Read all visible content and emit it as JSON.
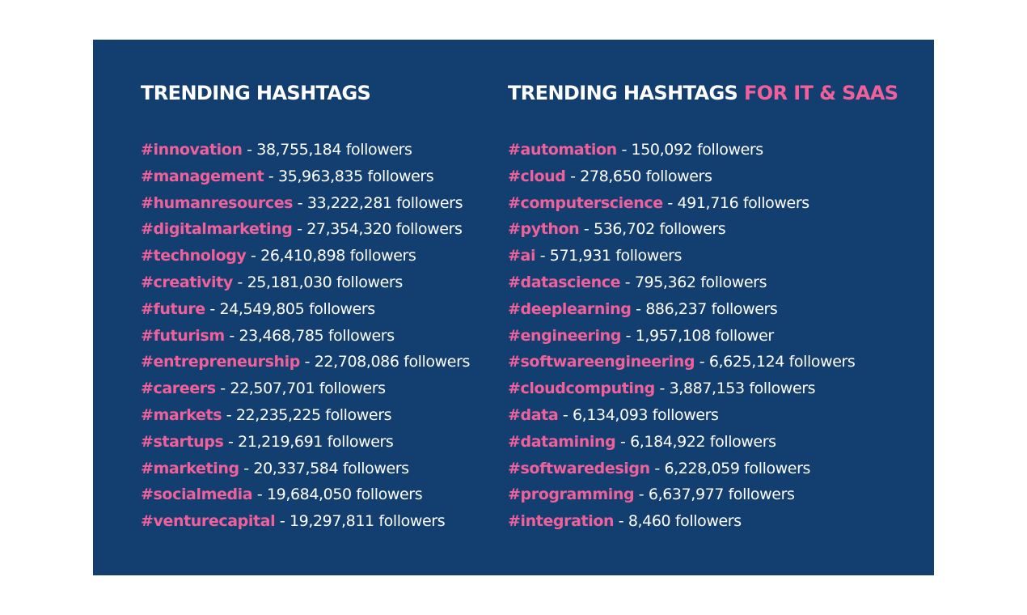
{
  "colors": {
    "background": "#ffffff",
    "card": "#133f70",
    "text": "#ffffff",
    "accent": "#f0609a"
  },
  "left": {
    "heading": "TRENDING HASHTAGS",
    "items": [
      {
        "tag": "#innovation",
        "count": " - 38,755,184 followers"
      },
      {
        "tag": "#management",
        "count": " - 35,963,835 followers"
      },
      {
        "tag": "#humanresources",
        "count": " - 33,222,281 followers"
      },
      {
        "tag": "#digitalmarketing",
        "count": " - 27,354,320 followers"
      },
      {
        "tag": "#technology",
        "count": " - 26,410,898 followers"
      },
      {
        "tag": "#creativity",
        "count": " - 25,181,030 followers"
      },
      {
        "tag": "#future",
        "count": " - 24,549,805 followers"
      },
      {
        "tag": "#futurism",
        "count": " - 23,468,785 followers"
      },
      {
        "tag": "#entrepreneurship",
        "count": " - 22,708,086 followers"
      },
      {
        "tag": "#careers",
        "count": " - 22,507,701 followers"
      },
      {
        "tag": "#markets",
        "count": " - 22,235,225 followers"
      },
      {
        "tag": "#startups",
        "count": " - 21,219,691 followers"
      },
      {
        "tag": "#marketing",
        "count": " - 20,337,584 followers"
      },
      {
        "tag": "#socialmedia",
        "count": " - 19,684,050 followers"
      },
      {
        "tag": "#venturecapital",
        "count": " - 19,297,811 followers"
      }
    ]
  },
  "right": {
    "heading": "TRENDING HASHTAGS ",
    "heading_accent": "FOR IT & SAAS",
    "items": [
      {
        "tag": "#automation",
        "count": " - 150,092 followers"
      },
      {
        "tag": "#cloud",
        "count": " - 278,650 followers"
      },
      {
        "tag": "#computerscience",
        "count": " - 491,716 followers"
      },
      {
        "tag": "#python",
        "count": " - 536,702 followers"
      },
      {
        "tag": "#ai",
        "count": " - 571,931 followers"
      },
      {
        "tag": "#datascience",
        "count": " - 795,362 followers"
      },
      {
        "tag": "#deeplearning",
        "count": " - 886,237 followers"
      },
      {
        "tag": "#engineering",
        "count": " - 1,957,108 follower"
      },
      {
        "tag": "#softwareengineering",
        "count": " - 6,625,124 followers"
      },
      {
        "tag": "#cloudcomputing",
        "count": " - 3,887,153 followers"
      },
      {
        "tag": "#data",
        "count": " - 6,134,093 followers"
      },
      {
        "tag": "#datamining",
        "count": " - 6,184,922 followers"
      },
      {
        "tag": "#softwaredesign",
        "count": " - 6,228,059 followers"
      },
      {
        "tag": "#programming",
        "count": " - 6,637,977 followers"
      },
      {
        "tag": "#integration",
        "count": " - 8,460 followers"
      }
    ]
  }
}
